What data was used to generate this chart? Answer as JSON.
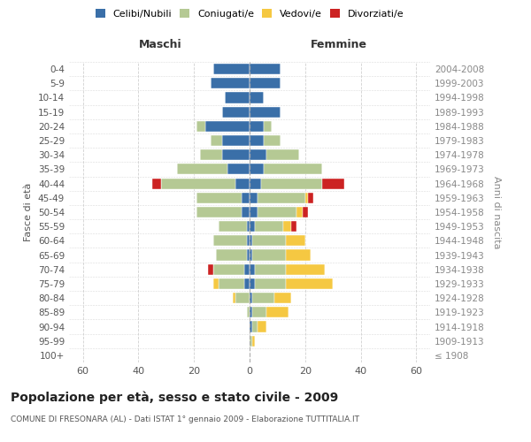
{
  "age_groups": [
    "100+",
    "95-99",
    "90-94",
    "85-89",
    "80-84",
    "75-79",
    "70-74",
    "65-69",
    "60-64",
    "55-59",
    "50-54",
    "45-49",
    "40-44",
    "35-39",
    "30-34",
    "25-29",
    "20-24",
    "15-19",
    "10-14",
    "5-9",
    "0-4"
  ],
  "birth_years": [
    "≤ 1908",
    "1909-1913",
    "1914-1918",
    "1919-1923",
    "1924-1928",
    "1929-1933",
    "1934-1938",
    "1939-1943",
    "1944-1948",
    "1949-1953",
    "1954-1958",
    "1959-1963",
    "1964-1968",
    "1969-1973",
    "1974-1978",
    "1979-1983",
    "1984-1988",
    "1989-1993",
    "1994-1998",
    "1999-2003",
    "2004-2008"
  ],
  "males": {
    "celibi": [
      0,
      0,
      0,
      0,
      0,
      2,
      2,
      1,
      1,
      1,
      3,
      3,
      5,
      8,
      10,
      10,
      16,
      10,
      9,
      14,
      13
    ],
    "coniugati": [
      0,
      0,
      0,
      1,
      5,
      9,
      11,
      11,
      12,
      10,
      16,
      16,
      27,
      18,
      8,
      4,
      3,
      0,
      0,
      0,
      0
    ],
    "vedovi": [
      0,
      0,
      0,
      0,
      1,
      2,
      0,
      0,
      0,
      0,
      0,
      0,
      0,
      0,
      0,
      0,
      0,
      0,
      0,
      0,
      0
    ],
    "divorziati": [
      0,
      0,
      0,
      0,
      0,
      0,
      2,
      0,
      0,
      0,
      0,
      0,
      3,
      0,
      0,
      0,
      0,
      0,
      0,
      0,
      0
    ]
  },
  "females": {
    "nubili": [
      0,
      0,
      1,
      1,
      1,
      2,
      2,
      1,
      1,
      2,
      3,
      3,
      4,
      5,
      6,
      5,
      5,
      11,
      5,
      11,
      11
    ],
    "coniugate": [
      0,
      1,
      2,
      5,
      8,
      11,
      11,
      12,
      12,
      10,
      14,
      17,
      22,
      21,
      12,
      6,
      3,
      0,
      0,
      0,
      0
    ],
    "vedove": [
      0,
      1,
      3,
      8,
      6,
      17,
      14,
      9,
      7,
      3,
      2,
      1,
      0,
      0,
      0,
      0,
      0,
      0,
      0,
      0,
      0
    ],
    "divorziate": [
      0,
      0,
      0,
      0,
      0,
      0,
      0,
      0,
      0,
      2,
      2,
      2,
      8,
      0,
      0,
      0,
      0,
      0,
      0,
      0,
      0
    ]
  },
  "colors": {
    "celibi": "#3a6fa8",
    "coniugati": "#b5c994",
    "vedovi": "#f5c842",
    "divorziati": "#cc2222"
  },
  "title": "Popolazione per età, sesso e stato civile - 2009",
  "subtitle": "COMUNE DI FRESONARA (AL) - Dati ISTAT 1° gennaio 2009 - Elaborazione TUTTITALIA.IT",
  "xlabel_left": "Maschi",
  "xlabel_right": "Femmine",
  "ylabel_left": "Fasce di età",
  "ylabel_right": "Anni di nascita",
  "xlim": 65,
  "background_color": "#ffffff",
  "grid_color": "#cccccc"
}
